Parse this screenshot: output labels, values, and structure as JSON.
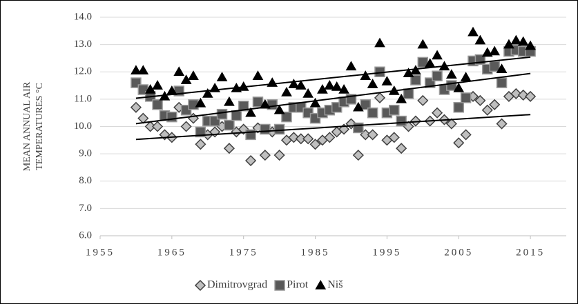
{
  "chart_data": {
    "type": "scatter",
    "y_label": [
      "MEAN ANNUAL AIR",
      "TEMPERATURES °C"
    ],
    "x": [
      1960,
      1961,
      1962,
      1963,
      1964,
      1965,
      1966,
      1967,
      1968,
      1969,
      1970,
      1971,
      1972,
      1973,
      1974,
      1975,
      1976,
      1977,
      1978,
      1979,
      1980,
      1981,
      1982,
      1983,
      1984,
      1985,
      1986,
      1987,
      1988,
      1989,
      1990,
      1991,
      1992,
      1993,
      1994,
      1995,
      1996,
      1997,
      1998,
      1999,
      2000,
      2001,
      2002,
      2003,
      2004,
      2005,
      2006,
      2007,
      2008,
      2009,
      2010,
      2011,
      2012,
      2013,
      2014,
      2015
    ],
    "series": [
      {
        "name": "Dimitrovgrad",
        "marker": "diamond",
        "color": "#bfbfbf",
        "values": [
          10.7,
          10.3,
          10.0,
          10.0,
          9.7,
          9.6,
          10.7,
          10.0,
          10.3,
          9.35,
          9.7,
          9.8,
          10.0,
          9.2,
          9.8,
          9.9,
          8.75,
          9.95,
          8.95,
          9.8,
          8.95,
          9.5,
          9.6,
          9.55,
          9.55,
          9.35,
          9.5,
          9.6,
          9.8,
          9.9,
          10.1,
          8.95,
          9.7,
          9.7,
          11.05,
          9.5,
          9.6,
          9.2,
          10.0,
          10.2,
          10.95,
          10.2,
          10.5,
          10.25,
          10.1,
          9.4,
          9.7,
          11.1,
          10.95,
          10.6,
          10.8,
          10.1,
          11.1,
          11.2,
          11.15,
          11.1
        ]
      },
      {
        "name": "Pirot",
        "marker": "square",
        "color": "#595959",
        "values": [
          11.6,
          11.35,
          11.1,
          10.8,
          10.4,
          10.35,
          11.3,
          10.6,
          10.8,
          9.8,
          10.2,
          10.2,
          10.45,
          10.05,
          10.4,
          10.75,
          9.7,
          10.9,
          9.9,
          10.8,
          9.9,
          10.35,
          10.7,
          10.7,
          10.5,
          10.3,
          10.5,
          10.6,
          10.7,
          10.9,
          11.0,
          9.95,
          10.8,
          10.5,
          12.0,
          10.5,
          10.6,
          10.2,
          11.2,
          11.7,
          12.35,
          11.6,
          11.85,
          11.35,
          11.5,
          10.7,
          11.05,
          12.4,
          12.45,
          12.1,
          12.2,
          11.6,
          12.75,
          12.8,
          12.75,
          12.75
        ]
      },
      {
        "name": "Niš",
        "marker": "triangle",
        "color": "#000000",
        "values": [
          12.05,
          12.05,
          11.35,
          11.5,
          11.1,
          11.3,
          12.0,
          11.7,
          11.85,
          10.85,
          11.2,
          11.4,
          11.8,
          10.9,
          11.4,
          11.45,
          10.5,
          11.85,
          10.8,
          11.6,
          10.6,
          11.25,
          11.55,
          11.5,
          11.2,
          10.85,
          11.35,
          11.5,
          11.45,
          11.35,
          12.2,
          10.7,
          11.85,
          11.55,
          13.05,
          11.65,
          11.3,
          11.0,
          11.95,
          12.05,
          13.0,
          12.3,
          12.6,
          12.2,
          11.9,
          11.4,
          11.8,
          13.45,
          13.15,
          12.7,
          12.75,
          12.1,
          13.0,
          13.15,
          13.1,
          12.95
        ]
      }
    ],
    "xlim": [
      1955,
      2020
    ],
    "xticks": [
      1955,
      1965,
      1975,
      1985,
      1995,
      2005,
      2015
    ],
    "ylim": [
      6,
      14
    ],
    "yticks": [
      {
        "value": 6,
        "label": "6.0"
      },
      {
        "value": 7,
        "label": "7.0"
      },
      {
        "value": 8,
        "label": "8.0"
      },
      {
        "value": 9,
        "label": "9.0"
      },
      {
        "value": 10,
        "label": "10.0"
      },
      {
        "value": 11,
        "label": "11.0"
      },
      {
        "value": 12,
        "label": "12.0"
      },
      {
        "value": 13,
        "label": "13.0"
      },
      {
        "value": 14,
        "label": "14.0"
      }
    ],
    "grid": true,
    "trendline": true,
    "legend": "bottom"
  }
}
